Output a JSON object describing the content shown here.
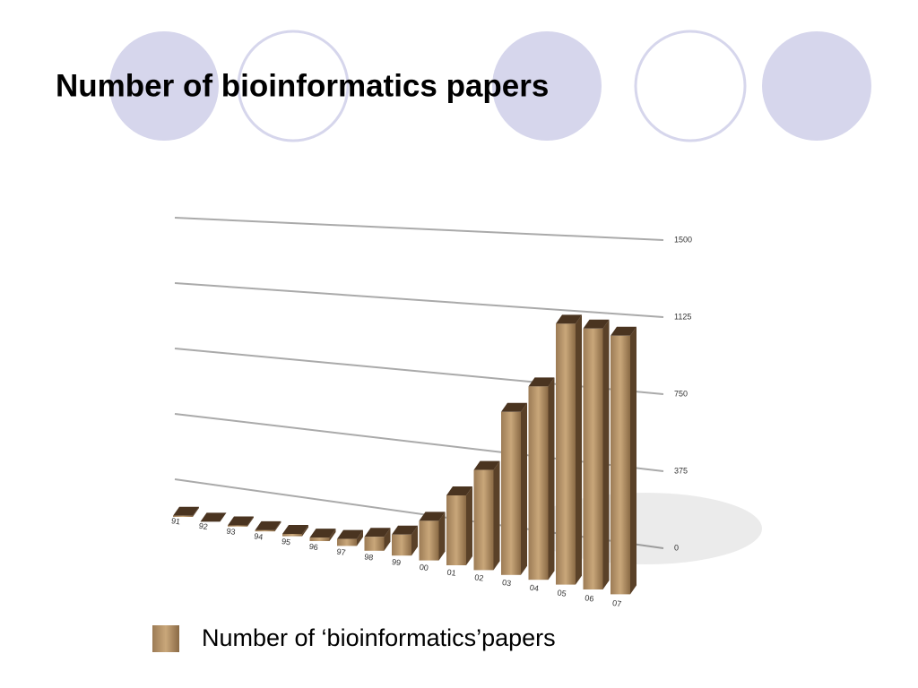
{
  "chart_data": {
    "type": "bar3d",
    "title": "Number of bioinformatics papers",
    "categories": [
      "91",
      "92",
      "93",
      "94",
      "95",
      "96",
      "97",
      "98",
      "99",
      "00",
      "01",
      "02",
      "03",
      "04",
      "05",
      "06",
      "07"
    ],
    "series": [
      {
        "name": "Number of  ‘bioinformatics’papers",
        "color": "#8a6a45",
        "values": [
          5,
          0,
          5,
          5,
          10,
          15,
          30,
          60,
          90,
          170,
          300,
          430,
          700,
          830,
          1120,
          1120,
          1110
        ]
      }
    ],
    "ylim": [
      0,
      1500
    ],
    "yticks": [
      0,
      375,
      750,
      1125,
      1500
    ],
    "grid": true,
    "legend": "bottom"
  }
}
